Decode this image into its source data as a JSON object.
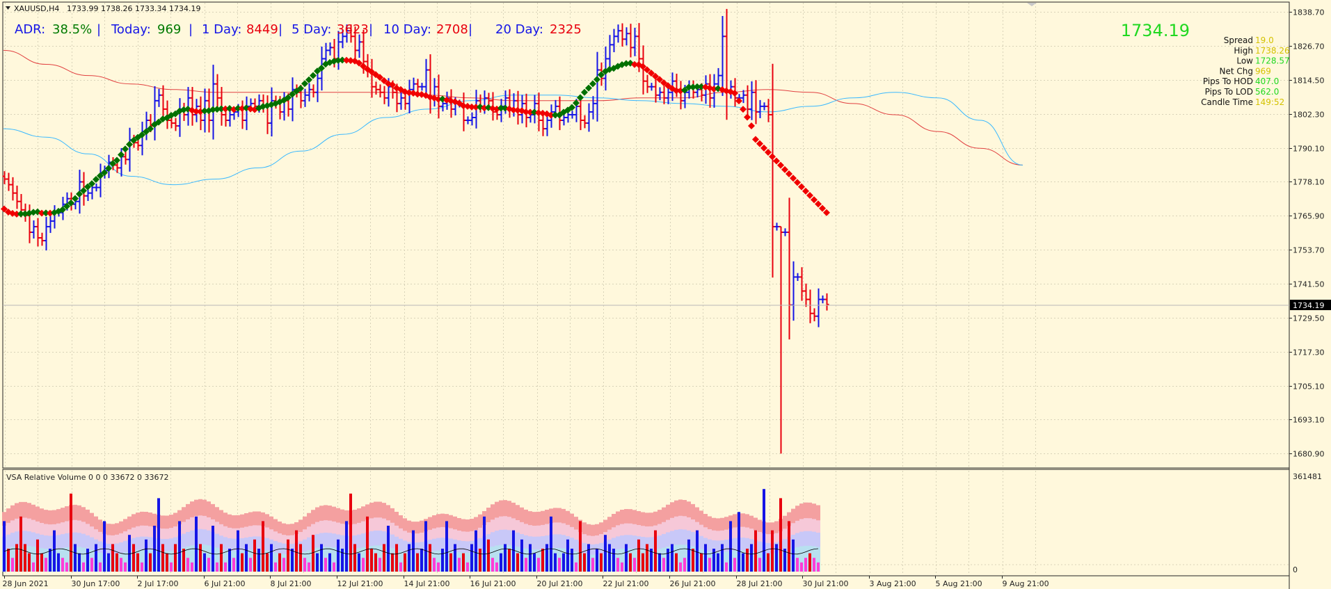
{
  "window": {
    "symbol": "XAUUSD,H4",
    "ohlc": "1733.99 1738.26 1733.34 1734.19"
  },
  "adr": {
    "adr_label": "ADR:",
    "adr_value": "38.5%",
    "today_label": "Today:",
    "today_value": "969",
    "d1_label": "1 Day:",
    "d1_value": "8449",
    "d5_label": "5 Day:",
    "d5_value": "3623",
    "d10_label": "10 Day:",
    "d10_value": "2708",
    "d20_label": "20 Day:",
    "d20_value": "2325",
    "sep": "|"
  },
  "info_panel": {
    "price": "1734.19",
    "rows": [
      {
        "label": "Spread",
        "value": "19.0",
        "color": "#d4c200"
      },
      {
        "label": "High",
        "value": "1738.26",
        "color": "#d4c200"
      },
      {
        "label": "Low",
        "value": "1728.57",
        "color": "#1fd81f"
      },
      {
        "label": "Net Chg",
        "value": "969",
        "color": "#d4c200"
      },
      {
        "label": "Pips To HOD",
        "value": "407.0",
        "color": "#1fd81f"
      },
      {
        "label": "Pips To LOD",
        "value": "562.0",
        "color": "#1fd81f"
      },
      {
        "label": "Candle Time",
        "value": "149:52",
        "color": "#d4c200"
      }
    ]
  },
  "volume_pane": {
    "title": "VSA Relative Volume 0 0 0 33672 0 33672",
    "max_label": "361481",
    "zero_label": "0"
  },
  "current_price_tag": "1734.19",
  "colors": {
    "background": "#fff8dc",
    "grid": "#d8d2b8",
    "bull": "#1515e6",
    "bear": "#e8000e",
    "ma_up": "#007000",
    "ma_down": "#f00000",
    "ma_slow": "#e14040",
    "ma_fast": "#38b8ff"
  },
  "chart_data": [
    {
      "type": "line",
      "title": "XAUUSD,H4",
      "x_labels": [
        "28 Jun 2021",
        "30 Jun 17:00",
        "2 Jul 17:00",
        "6 Jul 21:00",
        "8 Jul 21:00",
        "12 Jul 21:00",
        "14 Jul 21:00",
        "16 Jul 21:00",
        "20 Jul 21:00",
        "22 Jul 21:00",
        "26 Jul 21:00",
        "28 Jul 21:00",
        "30 Jul 21:00",
        "3 Aug 21:00",
        "5 Aug 21:00",
        "9 Aug 21:00"
      ],
      "y_ticks": [
        "1838.70",
        "1826.70",
        "1814.50",
        "1802.30",
        "1790.10",
        "1778.10",
        "1765.90",
        "1753.70",
        "1741.50",
        "1729.50",
        "1717.30",
        "1705.10",
        "1693.10",
        "1680.90"
      ],
      "ylim": [
        1676,
        1842
      ],
      "grid": true,
      "series": [
        {
          "name": "close",
          "values": [
            1779,
            1777,
            1774,
            1771,
            1768,
            1766,
            1760,
            1762,
            1758,
            1757,
            1762,
            1764,
            1767,
            1767,
            1770,
            1772,
            1770,
            1771,
            1778,
            1773,
            1774,
            1776,
            1776,
            1781,
            1782,
            1785,
            1784,
            1783,
            1787,
            1786,
            1793,
            1792,
            1791,
            1796,
            1800,
            1798,
            1807,
            1809,
            1804,
            1800,
            1799,
            1798,
            1804,
            1802,
            1808,
            1802,
            1805,
            1800,
            1807,
            1800,
            1813,
            1808,
            1802,
            1800,
            1802,
            1803,
            1804,
            1800,
            1805,
            1806,
            1805,
            1807,
            1805,
            1799,
            1807,
            1806,
            1803,
            1807,
            1804,
            1811,
            1810,
            1807,
            1809,
            1811,
            1810,
            1815,
            1822,
            1825,
            1826,
            1822,
            1828,
            1830,
            1832,
            1830,
            1825,
            1828,
            1821,
            1818,
            1812,
            1811,
            1810,
            1808,
            1812,
            1810,
            1806,
            1808,
            1806,
            1811,
            1813,
            1812,
            1812,
            1818,
            1808,
            1812,
            1805,
            1806,
            1808,
            1804,
            1806,
            1806,
            1800,
            1800,
            1801,
            1807,
            1805,
            1808,
            1807,
            1803,
            1802,
            1805,
            1808,
            1804,
            1807,
            1802,
            1806,
            1801,
            1802,
            1806,
            1800,
            1797,
            1800,
            1803,
            1805,
            1800,
            1801,
            1802,
            1802,
            1805,
            1800,
            1799,
            1803,
            1806,
            1818,
            1815,
            1822,
            1827,
            1830,
            1832,
            1829,
            1831,
            1826,
            1830,
            1822,
            1814,
            1812,
            1812,
            1809,
            1810,
            1808,
            1810,
            1814,
            1811,
            1807,
            1810,
            1812,
            1810,
            1811,
            1809,
            1813,
            1808,
            1813,
            1816,
            1830,
            1810,
            1812,
            1808,
            1808,
            1809,
            1804,
            1810,
            1803,
            1805,
            1805,
            1802,
            1762,
            1762,
            1760,
            1760,
            1734,
            1744,
            1744,
            1739,
            1736,
            1731,
            1730,
            1736,
            1736,
            1734.19
          ]
        },
        {
          "name": "ma_slow",
          "values": [
            1825,
            1820,
            1816,
            1813,
            1811,
            1810,
            1810,
            1810,
            1810,
            1810,
            1809,
            1808,
            1807,
            1807,
            1807,
            1808,
            1808,
            1810,
            1811,
            1810,
            1806,
            1802,
            1796,
            1790,
            1784
          ]
        },
        {
          "name": "ma_fast",
          "values": [
            1797,
            1794,
            1788,
            1780,
            1777,
            1779,
            1783,
            1789,
            1795,
            1801,
            1804,
            1807,
            1809,
            1809,
            1808,
            1807,
            1806,
            1805,
            1803,
            1805,
            1808,
            1810,
            1808,
            1800,
            1784
          ]
        }
      ]
    },
    {
      "type": "bar",
      "title": "VSA Relative Volume 0 0 0 33672 0 33672",
      "ylim": [
        0,
        361481
      ],
      "grid": true,
      "series": [
        {
          "name": "volume_relative",
          "values": [
            0.55,
            0.25,
            0.15,
            0.3,
            0.6,
            0.3,
            0.2,
            0.1,
            0.35,
            0.2,
            0.15,
            0.25,
            0.45,
            0.2,
            0.15,
            0.1,
            0.85,
            0.3,
            0.2,
            0.1,
            0.25,
            0.15,
            0.3,
            0.1,
            0.55,
            0.2,
            0.3,
            0.2,
            0.15,
            0.1,
            0.4,
            0.3,
            0.2,
            0.1,
            0.35,
            0.2,
            0.5,
            0.8,
            0.3,
            0.2,
            0.1,
            0.3,
            0.55,
            0.25,
            0.15,
            0.1,
            0.6,
            0.3,
            0.2,
            0.15,
            0.5,
            0.1,
            0.3,
            0.1,
            0.25,
            0.15,
            0.45,
            0.2,
            0.3,
            0.15,
            0.35,
            0.25,
            0.55,
            0.2,
            0.3,
            0.1,
            0.2,
            0.15,
            0.35,
            0.25,
            0.45,
            0.3,
            0.15,
            0.1,
            0.4,
            0.2,
            0.3,
            0.15,
            0.2,
            0.1,
            0.35,
            0.25,
            0.55,
            0.85,
            0.3,
            0.2,
            0.15,
            0.6,
            0.25,
            0.2,
            0.15,
            0.3,
            0.5,
            0.2,
            0.3,
            0.1,
            0.2,
            0.3,
            0.45,
            0.2,
            0.25,
            0.55,
            0.3,
            0.15,
            0.1,
            0.25,
            0.55,
            0.2,
            0.3,
            0.15,
            0.2,
            0.1,
            0.3,
            0.45,
            0.25,
            0.6,
            0.35,
            0.15,
            0.1,
            0.2,
            0.3,
            0.25,
            0.45,
            0.2,
            0.35,
            0.15,
            0.3,
            0.2,
            0.15,
            0.25,
            0.3,
            0.6,
            0.2,
            0.15,
            0.2,
            0.35,
            0.25,
            0.1,
            0.55,
            0.2,
            0.3,
            0.15,
            0.25,
            0.2,
            0.4,
            0.3,
            0.25,
            0.15,
            0.1,
            0.3,
            0.2,
            0.15,
            0.35,
            0.2,
            0.3,
            0.25,
            0.45,
            0.2,
            0.15,
            0.25,
            0.3,
            0.2,
            0.1,
            0.15,
            0.35,
            0.25,
            0.45,
            0.2,
            0.3,
            0.15,
            0.25,
            0.2,
            0.3,
            0.1,
            0.55,
            0.15,
            0.65,
            0.2,
            0.25,
            0.3,
            0.45,
            0.15,
            0.9,
            0.2,
            0.45,
            0.3,
            0.8,
            0.25,
            0.55,
            0.35,
            0.15,
            0.1,
            0.15,
            0.2,
            0.15,
            0.1
          ]
        }
      ]
    }
  ]
}
